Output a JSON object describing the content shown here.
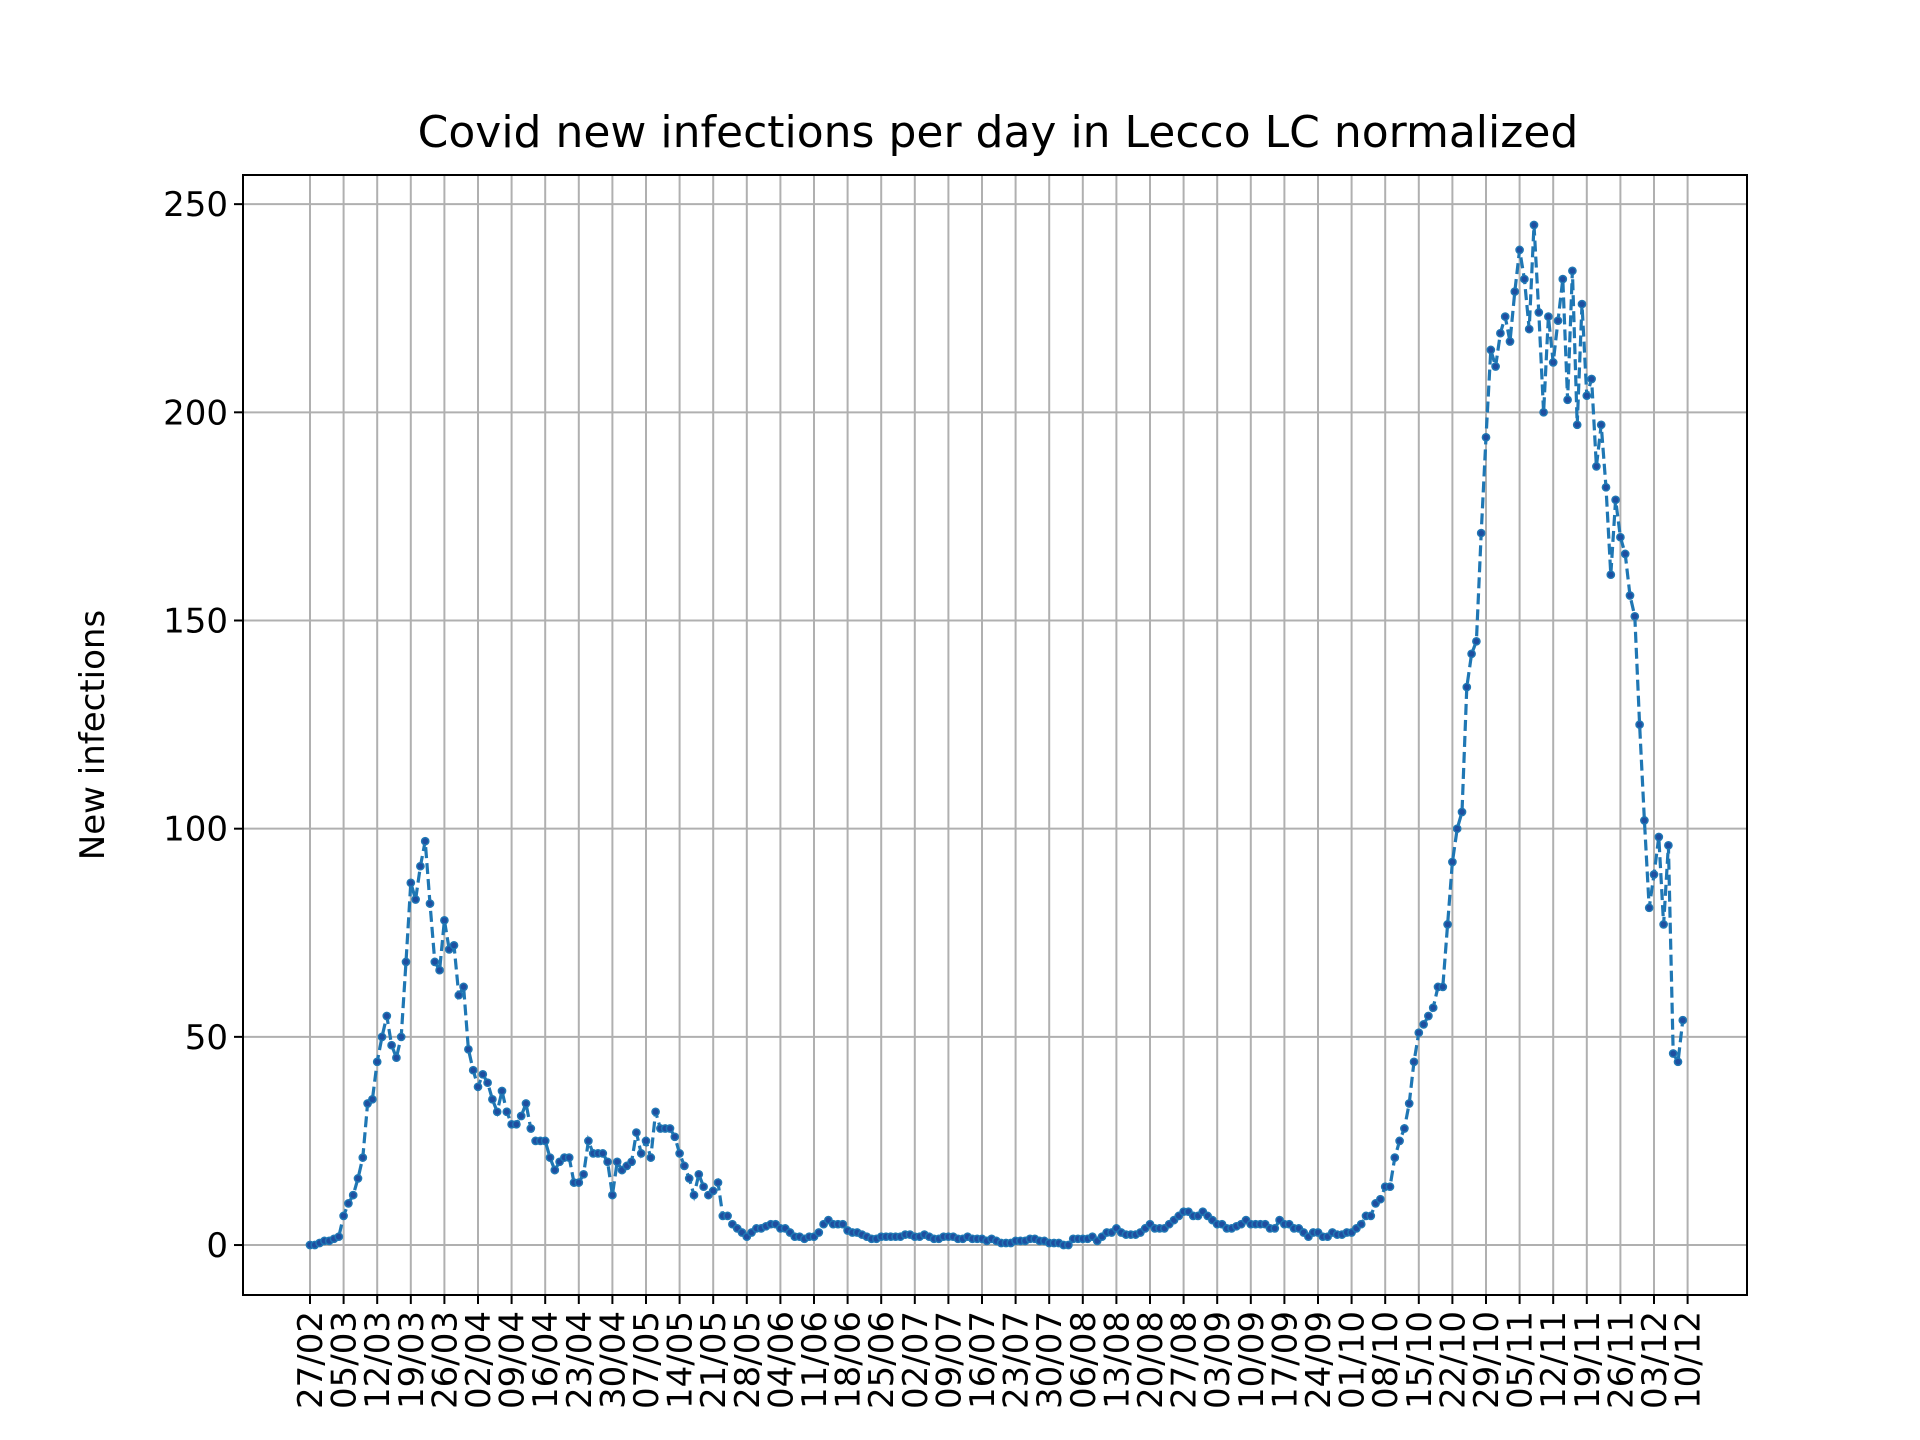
{
  "chart_data": {
    "type": "line",
    "title": "Covid new infections per day in Lecco LC normalized",
    "xlabel": "",
    "ylabel": "New infections",
    "ylim": [
      -12,
      257
    ],
    "yticks": [
      0,
      50,
      100,
      150,
      200,
      250
    ],
    "grid": true,
    "x_tick_labels": [
      "27/02",
      "05/03",
      "12/03",
      "19/03",
      "26/03",
      "02/04",
      "09/04",
      "16/04",
      "23/04",
      "30/04",
      "07/05",
      "14/05",
      "21/05",
      "28/05",
      "04/06",
      "11/06",
      "18/06",
      "25/06",
      "02/07",
      "09/07",
      "16/07",
      "23/07",
      "30/07",
      "06/08",
      "13/08",
      "20/08",
      "27/08",
      "03/09",
      "10/09",
      "17/09",
      "24/09",
      "01/10",
      "08/10",
      "15/10",
      "22/10",
      "29/10",
      "05/11",
      "12/11",
      "19/11",
      "26/11",
      "03/12",
      "10/12"
    ],
    "x_start_date": "2020-02-27",
    "series": [
      {
        "name": "",
        "color": "#1f77b4",
        "values": [
          0,
          0,
          0.5,
          1,
          1,
          1.5,
          2,
          7,
          10,
          12,
          16,
          21,
          34,
          35,
          44,
          50,
          55,
          48,
          45,
          50,
          68,
          87,
          83,
          91,
          97,
          82,
          68,
          66,
          78,
          71,
          72,
          60,
          62,
          47,
          42,
          38,
          41,
          39,
          35,
          32,
          37,
          32,
          29,
          29,
          31,
          34,
          28,
          25,
          25,
          25,
          21,
          18,
          20,
          21,
          21,
          15,
          15,
          17,
          25,
          22,
          22,
          22,
          20,
          12,
          20,
          18,
          19,
          20,
          27,
          22,
          25,
          21,
          32,
          28,
          28,
          28,
          26,
          22,
          19,
          16,
          12,
          17,
          14,
          12,
          13,
          15,
          7,
          7,
          5,
          4,
          3,
          2,
          3,
          4,
          4,
          4.5,
          5,
          5,
          4,
          4,
          3,
          2,
          2,
          1.5,
          2,
          2,
          3,
          5,
          6,
          5,
          5,
          5,
          3.5,
          3,
          3,
          2.5,
          2,
          1.5,
          1.5,
          2,
          2,
          2,
          2,
          2,
          2.5,
          2.5,
          2,
          2,
          2.5,
          2,
          1.5,
          1.5,
          2,
          2,
          2,
          1.5,
          1.5,
          2,
          1.5,
          1.5,
          1.5,
          1,
          1.5,
          1,
          0.5,
          0.5,
          0.5,
          1,
          1,
          1,
          1.5,
          1.5,
          1,
          1,
          0.5,
          0.5,
          0.5,
          0,
          0,
          1.5,
          1.5,
          1.5,
          1.5,
          2,
          1,
          2,
          3,
          3,
          4,
          3,
          2.5,
          2.5,
          2.5,
          3,
          4,
          5,
          4,
          4,
          4,
          5,
          6,
          7,
          8,
          8,
          7,
          7,
          8,
          7,
          6,
          5,
          5,
          4,
          4,
          4.5,
          5,
          6,
          5,
          5,
          5,
          5,
          4,
          4,
          6,
          5,
          5,
          4,
          4,
          3,
          2,
          3,
          3,
          2,
          2,
          3,
          2.5,
          2.5,
          3,
          3,
          4,
          5,
          7,
          7,
          10,
          11,
          14,
          14,
          21,
          25,
          28,
          34,
          44,
          51,
          53,
          55,
          57,
          62,
          62,
          77,
          92,
          100,
          104,
          134,
          142,
          145,
          171,
          194,
          215,
          211,
          219,
          223,
          217,
          229,
          239,
          232,
          220,
          245,
          224,
          200,
          223,
          212,
          222,
          232,
          203,
          234,
          197,
          226,
          204,
          208,
          187,
          197,
          182,
          161,
          179,
          170,
          166,
          156,
          151,
          125,
          102,
          81,
          89,
          98,
          77,
          96,
          46,
          44,
          54
        ]
      }
    ]
  }
}
